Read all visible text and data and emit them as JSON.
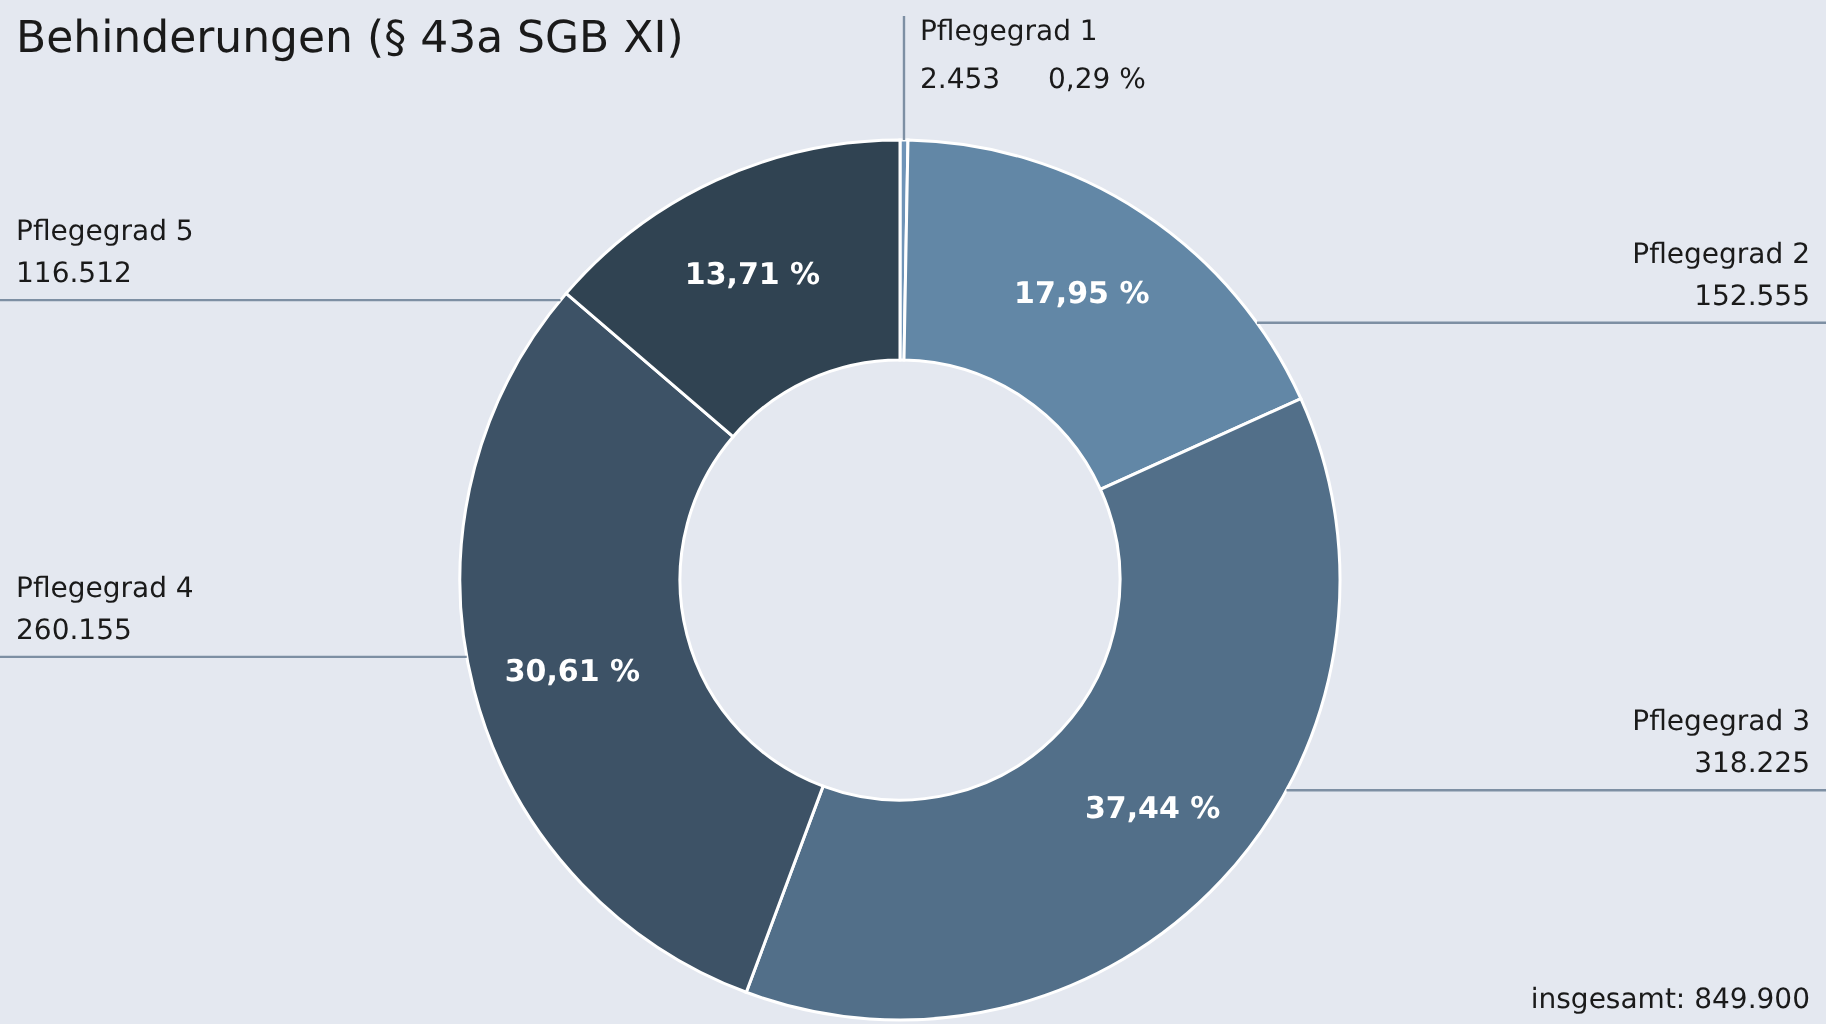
{
  "chart_data": {
    "type": "donut",
    "title": "Behinderungen (§ 43a SGB XI)",
    "categories": [
      "Pflegegrad 1",
      "Pflegegrad 2",
      "Pflegegrad 3",
      "Pflegegrad 4",
      "Pflegegrad 5"
    ],
    "values": [
      2453,
      152555,
      318225,
      260155,
      116512
    ],
    "colors": [
      "#6f94b8",
      "#6287a6",
      "#526f89",
      "#3d5266",
      "#304352"
    ],
    "value_labels": [
      "2.453",
      "152.555",
      "318.225",
      "260.155",
      "116.512"
    ],
    "annotations": [
      {
        "text": "0,29 %",
        "x": "Pflegegrad 1"
      },
      {
        "text": "17,95 %",
        "x": "Pflegegrad 2"
      },
      {
        "text": "37,44 %",
        "x": "Pflegegrad 3"
      },
      {
        "text": "30,61 %",
        "x": "Pflegegrad 4"
      },
      {
        "text": "13,71 %",
        "x": "Pflegegrad 5"
      },
      "insgesamt: 849.900"
    ]
  }
}
